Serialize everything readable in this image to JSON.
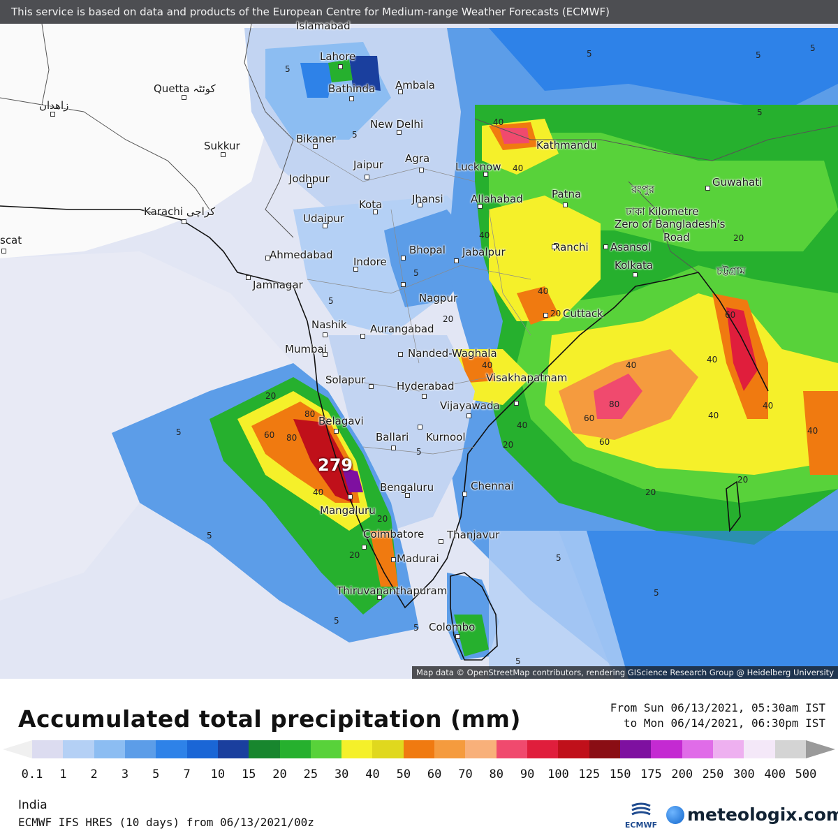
{
  "header": {
    "attribution": "This service is based on data and products of the European Centre for Medium-range Weather Forecasts (ECMWF)"
  },
  "map": {
    "map_attribution": "Map data © OpenStreetMap contributors, rendering GIScience Research Group @ Heidelberg University",
    "max_value": "279",
    "cities": [
      {
        "name": "Islamabad"
      },
      {
        "name": "Lahore"
      },
      {
        "name": "Bathinda"
      },
      {
        "name": "Ambala"
      },
      {
        "name": "Quetta کوئٹہ"
      },
      {
        "name": "زاهدان"
      },
      {
        "name": "New Delhi"
      },
      {
        "name": "Sukkur"
      },
      {
        "name": "Bikaner"
      },
      {
        "name": "Jaipur"
      },
      {
        "name": "Agra"
      },
      {
        "name": "Lucknow"
      },
      {
        "name": "Kathmandu"
      },
      {
        "name": "Jodhpur"
      },
      {
        "name": "Kota"
      },
      {
        "name": "Jhansi"
      },
      {
        "name": "Allahabad"
      },
      {
        "name": "Patna"
      },
      {
        "name": "Guwahati"
      },
      {
        "name": "Karachi کراچی"
      },
      {
        "name": "Udaipur"
      },
      {
        "name": "scat"
      },
      {
        "name": "Ahmedabad"
      },
      {
        "name": "Bhopal"
      },
      {
        "name": "Jabalpur"
      },
      {
        "name": "Ranchi"
      },
      {
        "name": "Asansol"
      },
      {
        "name": "Indore"
      },
      {
        "name": "Kolkata"
      },
      {
        "name": "Jamnagar"
      },
      {
        "name": "Nagpur"
      },
      {
        "name": "Nashik"
      },
      {
        "name": "Aurangabad"
      },
      {
        "name": "Cuttack"
      },
      {
        "name": "Mumbai"
      },
      {
        "name": "Nanded-Waghala"
      },
      {
        "name": "Solapur"
      },
      {
        "name": "Hyderabad"
      },
      {
        "name": "Visakhapatnam"
      },
      {
        "name": "Vijayawada"
      },
      {
        "name": "Belagavi"
      },
      {
        "name": "Ballari"
      },
      {
        "name": "Kurnool"
      },
      {
        "name": "Bengaluru"
      },
      {
        "name": "Chennai"
      },
      {
        "name": "Mangaluru"
      },
      {
        "name": "Coimbatore"
      },
      {
        "name": "Thanjavur"
      },
      {
        "name": "Madurai"
      },
      {
        "name": "Thiruvananthapuram"
      },
      {
        "name": "Colombo"
      },
      {
        "name": "ঢাকা Kilometre"
      },
      {
        "name": "Zero of Bangladesh's"
      },
      {
        "name": "Road"
      },
      {
        "name": "রংপুর"
      },
      {
        "name": "চট্টগ্রাম"
      }
    ],
    "contour_labels": [
      "5",
      "5",
      "5",
      "5",
      "5",
      "5",
      "5",
      "5",
      "5",
      "5",
      "5",
      "5",
      "20",
      "20",
      "20",
      "20",
      "20",
      "20",
      "20",
      "20",
      "40",
      "40",
      "40",
      "40",
      "40",
      "40",
      "40",
      "40",
      "40",
      "60",
      "60",
      "60",
      "60",
      "80",
      "80",
      "80",
      "40",
      "20",
      "40",
      "40",
      "5",
      "5",
      "5",
      "5"
    ]
  },
  "footer": {
    "title": "Accumulated total precipitation (mm)",
    "period_from": "From Sun 06/13/2021, 05:30am IST",
    "period_to": "to Mon 06/14/2021, 06:30pm IST",
    "region": "India",
    "model": "ECMWF IFS HRES (10 days) from 06/13/2021/00z",
    "ecmwf_logo_text": "ECMWF",
    "brand": "meteologix.com"
  },
  "legend": {
    "colors": [
      "#dcdcf0",
      "#b4d0f5",
      "#8cbdf2",
      "#5c9de8",
      "#2e82e8",
      "#1a66d6",
      "#1a3f9e",
      "#18862e",
      "#26b02e",
      "#58d23a",
      "#f5f02a",
      "#e0d81e",
      "#f07a10",
      "#f59b3e",
      "#f8b07a",
      "#f04a6e",
      "#e01e3c",
      "#c0101a",
      "#8a0e14",
      "#7e10a0",
      "#c42ad2",
      "#e06ce8",
      "#eeb0f0",
      "#f4e8f8",
      "#d4d4d4"
    ],
    "under_color": "#f0f0f0",
    "over_color": "#9a9a9a",
    "ticks": [
      "0.1",
      "1",
      "2",
      "3",
      "5",
      "7",
      "10",
      "15",
      "20",
      "25",
      "30",
      "40",
      "50",
      "60",
      "70",
      "80",
      "90",
      "100",
      "125",
      "150",
      "175",
      "200",
      "250",
      "300",
      "400",
      "500"
    ]
  }
}
